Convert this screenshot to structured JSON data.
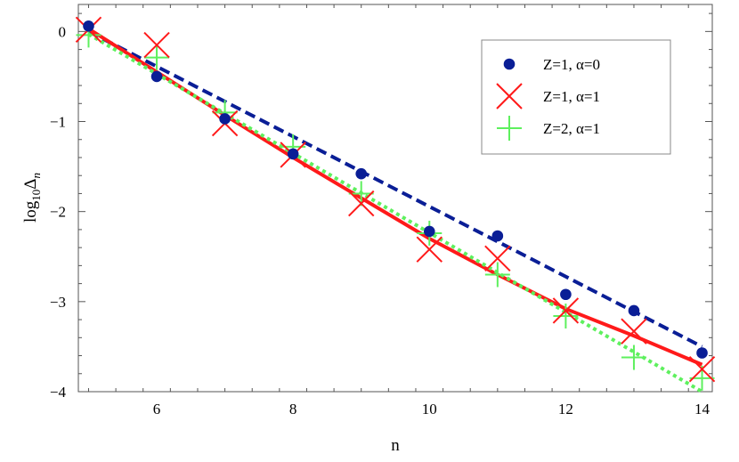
{
  "chart_data": {
    "type": "scatter",
    "title": "",
    "xlabel": "n",
    "ylabel": "log",
    "ylabel_sub": "10",
    "ylabel_symbol": "Δ",
    "ylabel_symbol_sub": "n",
    "xlim": [
      4.85,
      14.15
    ],
    "ylim": [
      -4.0,
      0.3
    ],
    "x_ticks": [
      6,
      8,
      10,
      12,
      14
    ],
    "x_tick_labels": [
      "6",
      "8",
      "10",
      "12",
      "14"
    ],
    "y_ticks": [
      0,
      -1,
      -2,
      -3,
      -4
    ],
    "y_tick_labels": [
      "0",
      "−1",
      "−2",
      "−3",
      "−4"
    ],
    "grid": false,
    "legend_position": "top-right",
    "series": [
      {
        "name": "Z=1, α=0",
        "marker": "dot",
        "color": "#0a1e96",
        "x": [
          5,
          6,
          7,
          8,
          9,
          10,
          11,
          12,
          13,
          14
        ],
        "y": [
          0.06,
          -0.5,
          -0.97,
          -1.36,
          -1.58,
          -2.22,
          -2.27,
          -2.92,
          -3.1,
          -3.57
        ]
      },
      {
        "name": "Z=1, α=1",
        "marker": "x",
        "color": "#ff1a1a",
        "x": [
          5,
          6,
          7,
          8,
          9,
          10,
          11,
          12,
          13,
          14
        ],
        "y": [
          0.02,
          -0.15,
          -1.02,
          -1.37,
          -1.91,
          -2.42,
          -2.52,
          -3.1,
          -3.33,
          -3.75
        ]
      },
      {
        "name": "Z=2, α=1",
        "marker": "plus",
        "color": "#5ef05e",
        "x": [
          5,
          6,
          7,
          8,
          9,
          10,
          11,
          12,
          13,
          14
        ],
        "y": [
          -0.04,
          -0.29,
          -0.9,
          -1.28,
          -1.8,
          -2.24,
          -2.7,
          -3.16,
          -3.62,
          -3.85
        ]
      }
    ],
    "fits": [
      {
        "series": 0,
        "style": "dashed",
        "color": "#0a1e96",
        "x": [
          5,
          14
        ],
        "y": [
          0.0,
          -3.5
        ]
      },
      {
        "series": 1,
        "style": "solid",
        "color": "#ff1a1a",
        "x": [
          5,
          6,
          7,
          8,
          9,
          10,
          11,
          12,
          13,
          14
        ],
        "y": [
          0.03,
          -0.45,
          -0.93,
          -1.4,
          -1.85,
          -2.3,
          -2.7,
          -3.08,
          -3.38,
          -3.7
        ]
      },
      {
        "series": 2,
        "style": "dotted",
        "color": "#5ef05e",
        "x": [
          5,
          14
        ],
        "y": [
          -0.03,
          -4.0
        ]
      }
    ]
  }
}
